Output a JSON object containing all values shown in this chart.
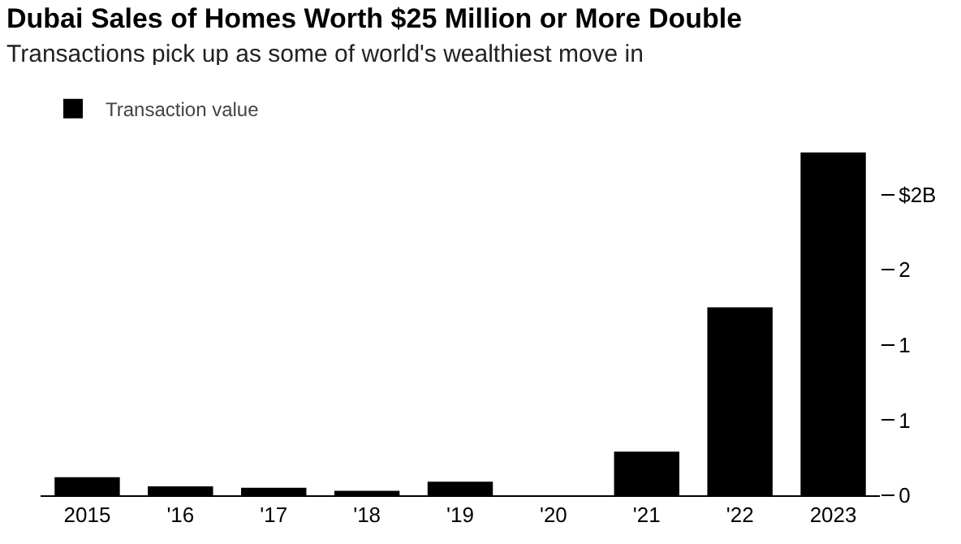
{
  "chart_data": {
    "type": "bar",
    "title": "Dubai Sales of Homes Worth $25 Million or More Double",
    "subtitle": "Transactions pick up as some of world's wealthiest move in",
    "categories": [
      "2015",
      "'16",
      "'17",
      "'18",
      "'19",
      "'20",
      "'21",
      "'22",
      "2023"
    ],
    "series": [
      {
        "name": "Transaction value",
        "color": "#000000",
        "values": [
          0.12,
          0.06,
          0.05,
          0.03,
          0.09,
          0,
          0.29,
          1.25,
          2.28
        ]
      }
    ],
    "ylim": [
      0,
      2.3
    ],
    "yticks": [
      0,
      {
        "value": 0.5,
        "label": "1"
      },
      1,
      {
        "value": 1.5,
        "label": "2"
      },
      {
        "value": 2,
        "label": "$2B"
      }
    ],
    "grid": false,
    "legend": "top left"
  }
}
